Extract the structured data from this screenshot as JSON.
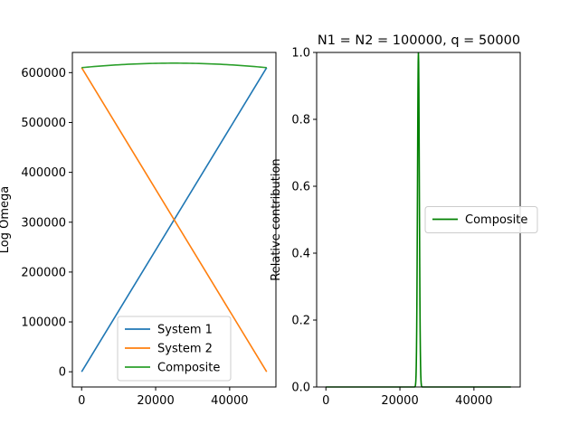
{
  "chart_data": [
    {
      "type": "line",
      "title": "",
      "xlabel": "",
      "ylabel": "Log Omega",
      "xlim": [
        -2500,
        52500
      ],
      "ylim": [
        -30500,
        640500
      ],
      "xticks": [
        0,
        20000,
        40000
      ],
      "yticks": [
        0,
        100000,
        200000,
        300000,
        400000,
        500000,
        600000
      ],
      "tick_labels_x": [
        "0",
        "20000",
        "40000"
      ],
      "tick_labels_y": [
        "0",
        "100000",
        "200000",
        "300000",
        "400000",
        "500000",
        "600000"
      ],
      "legend_position": "lower-center",
      "series": [
        {
          "name": "System 1",
          "color": "#1f77b4",
          "kind": "linear",
          "x": [
            0,
            50000
          ],
          "y": [
            0,
            610000
          ]
        },
        {
          "name": "System 2",
          "color": "#ff7f0e",
          "kind": "linear",
          "x": [
            0,
            50000
          ],
          "y": [
            610000,
            0
          ]
        },
        {
          "name": "Composite",
          "color": "#2ca02c",
          "kind": "arc",
          "x": [
            0,
            25000,
            50000
          ],
          "y": [
            610000,
            619000,
            610000
          ]
        }
      ]
    },
    {
      "type": "line",
      "title": "N1 = N2 = 100000, q = 50000",
      "xlabel": "",
      "ylabel": "Relative contribution",
      "xlim": [
        -2500,
        52500
      ],
      "ylim": [
        0,
        1.0
      ],
      "xticks": [
        0,
        20000,
        40000
      ],
      "yticks": [
        0.0,
        0.2,
        0.4,
        0.6,
        0.8,
        1.0
      ],
      "tick_labels_x": [
        "0",
        "20000",
        "40000"
      ],
      "tick_labels_y": [
        "0.0",
        "0.2",
        "0.4",
        "0.6",
        "0.8",
        "1.0"
      ],
      "legend_position": "center-right",
      "series": [
        {
          "name": "Composite",
          "color": "#008000",
          "kind": "peak",
          "peak_x": 25000,
          "peak_width": 350,
          "x_range": [
            0,
            50000
          ]
        }
      ]
    }
  ]
}
